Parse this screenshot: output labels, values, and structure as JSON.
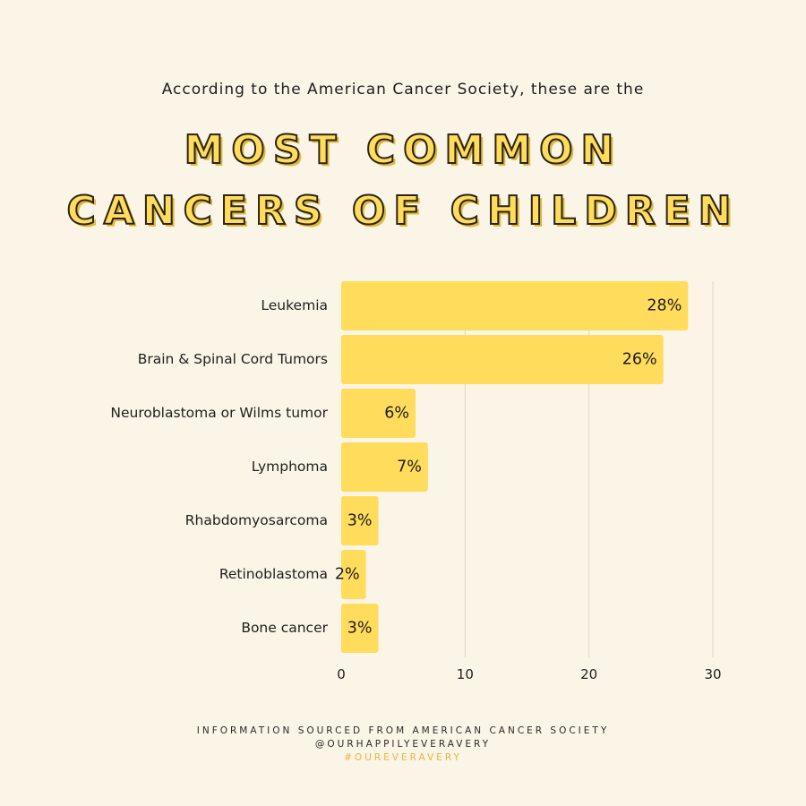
{
  "header": {
    "intro": "According to the American Cancer Society, these are the",
    "title_line1": "MOST COMMON",
    "title_line2": "CANCERS OF CHILDREN"
  },
  "chart_data": {
    "type": "bar",
    "orientation": "horizontal",
    "categories": [
      "Leukemia",
      "Brain & Spinal Cord Tumors",
      "Neuroblastoma or Wilms tumor",
      "Lymphoma",
      "Rhabdomyosarcoma",
      "Retinoblastoma",
      "Bone cancer"
    ],
    "values": [
      28,
      26,
      6,
      7,
      3,
      2,
      3
    ],
    "data_labels": [
      "28%",
      "26%",
      "6%",
      "7%",
      "3%",
      "2%",
      "3%"
    ],
    "xlim": [
      0,
      30
    ],
    "xticks": [
      0,
      10,
      20,
      30
    ],
    "grid": true,
    "bar_color": "#FFDC5C",
    "grid_color": "#DDD8CB"
  },
  "footer": {
    "line1": "INFORMATION SOURCED FROM AMERICAN CANCER SOCIETY",
    "line2": "@OURHAPPILYEVERAVERY",
    "line3": "#OUREVERAVERY"
  },
  "colors": {
    "background": "#FAF5E6",
    "accent": "#FFDC5C",
    "hashtag": "#E9B73C"
  }
}
